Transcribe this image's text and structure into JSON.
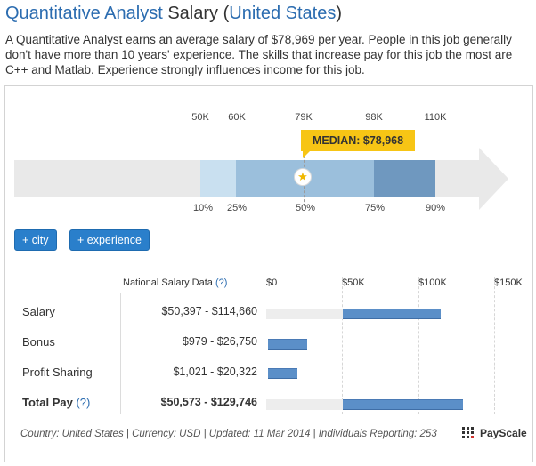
{
  "header": {
    "title_part1": "Quantitative Analyst",
    "title_part2": " Salary (",
    "title_part3": "United States",
    "title_part4": ")",
    "description": "A Quantitative Analyst earns an average salary of $78,969 per year. People in this job generally don't have more than 10 years' experience. The skills that increase pay for this job the most are C++ and Matlab. Experience strongly influences income for this job."
  },
  "distribution": {
    "ticks": [
      "50K",
      "60K",
      "79K",
      "98K",
      "110K"
    ],
    "percentiles": [
      "10%",
      "25%",
      "50%",
      "75%",
      "90%"
    ],
    "median_label": "MEDIAN: $78,968",
    "star_icon": "★",
    "colors": {
      "light": "#c9e0f0",
      "mid": "#9bbfdc",
      "dark": "#6f98bf",
      "arrow": "#e9e9e9",
      "median": "#f7c515"
    }
  },
  "filters": {
    "city_label": "+ city",
    "experience_label": "+ experience",
    "button_color": "#2a7fcb"
  },
  "table": {
    "col_header": "National Salary Data",
    "col_header_help": "(?)",
    "axis_labels": [
      "$0",
      "$50K",
      "$100K",
      "$150K"
    ],
    "rows": [
      {
        "label": "Salary",
        "range": "$50,397 - $114,660",
        "min": 50397,
        "max": 114660
      },
      {
        "label": "Bonus",
        "range": "$979 - $26,750",
        "min": 979,
        "max": 26750
      },
      {
        "label": "Profit Sharing",
        "range": "$1,021 - $20,322",
        "min": 1021,
        "max": 20322
      },
      {
        "label": "Total Pay",
        "label_help": "(?)",
        "range": "$50,573 - $129,746",
        "min": 50573,
        "max": 129746
      }
    ],
    "bar_color": "#5b8fc8"
  },
  "footer": {
    "text": "Country: United States | Currency: USD | Updated: 11 Mar 2014 | Individuals Reporting: 253",
    "brand": "PayScale"
  }
}
